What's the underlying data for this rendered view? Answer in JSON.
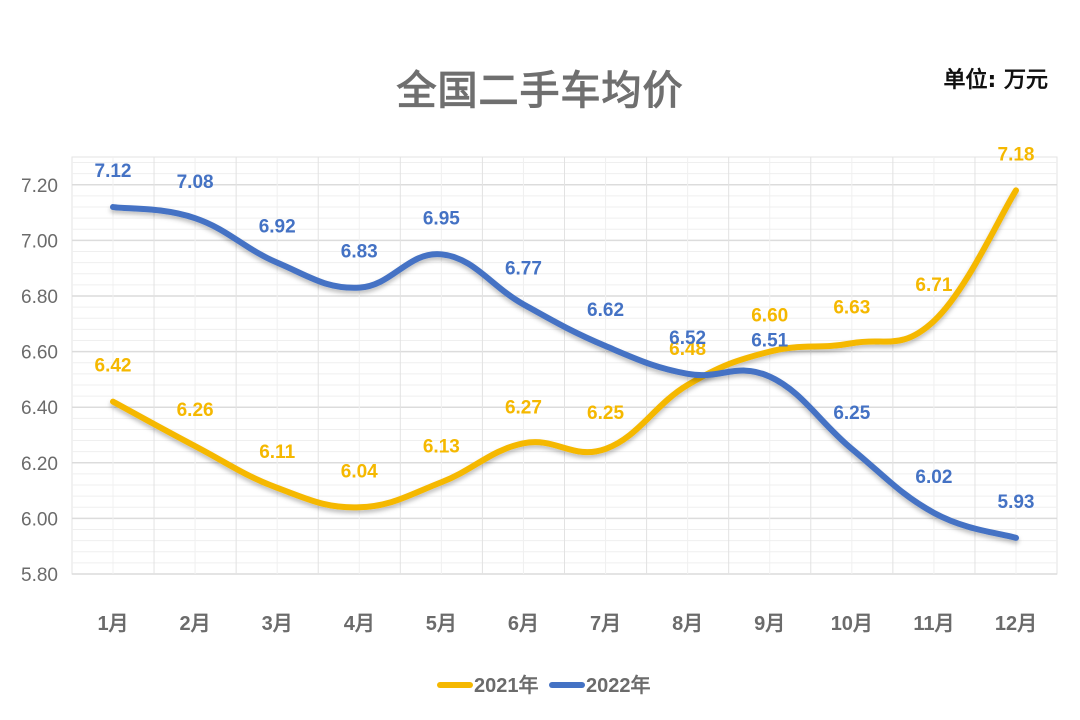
{
  "chart_data": {
    "type": "line",
    "title": "全国二手车均价",
    "unit_label": "单位: 万元",
    "xlabel": "",
    "ylabel": "",
    "categories": [
      "1月",
      "2月",
      "3月",
      "4月",
      "5月",
      "6月",
      "7月",
      "8月",
      "9月",
      "10月",
      "11月",
      "12月"
    ],
    "series": [
      {
        "name": "2021年",
        "color": "#f5b800",
        "values": [
          6.42,
          6.26,
          6.11,
          6.04,
          6.13,
          6.27,
          6.25,
          6.48,
          6.6,
          6.63,
          6.71,
          7.18
        ]
      },
      {
        "name": "2022年",
        "color": "#4472c4",
        "values": [
          7.12,
          7.08,
          6.92,
          6.83,
          6.95,
          6.77,
          6.62,
          6.52,
          6.51,
          6.25,
          6.02,
          5.93
        ]
      }
    ],
    "ylim": [
      5.8,
      7.3
    ],
    "yticks": [
      "5.80",
      "6.00",
      "6.20",
      "6.40",
      "6.60",
      "6.80",
      "7.00",
      "7.20"
    ],
    "grid": true,
    "smooth": true,
    "legend": "bottom-center"
  }
}
